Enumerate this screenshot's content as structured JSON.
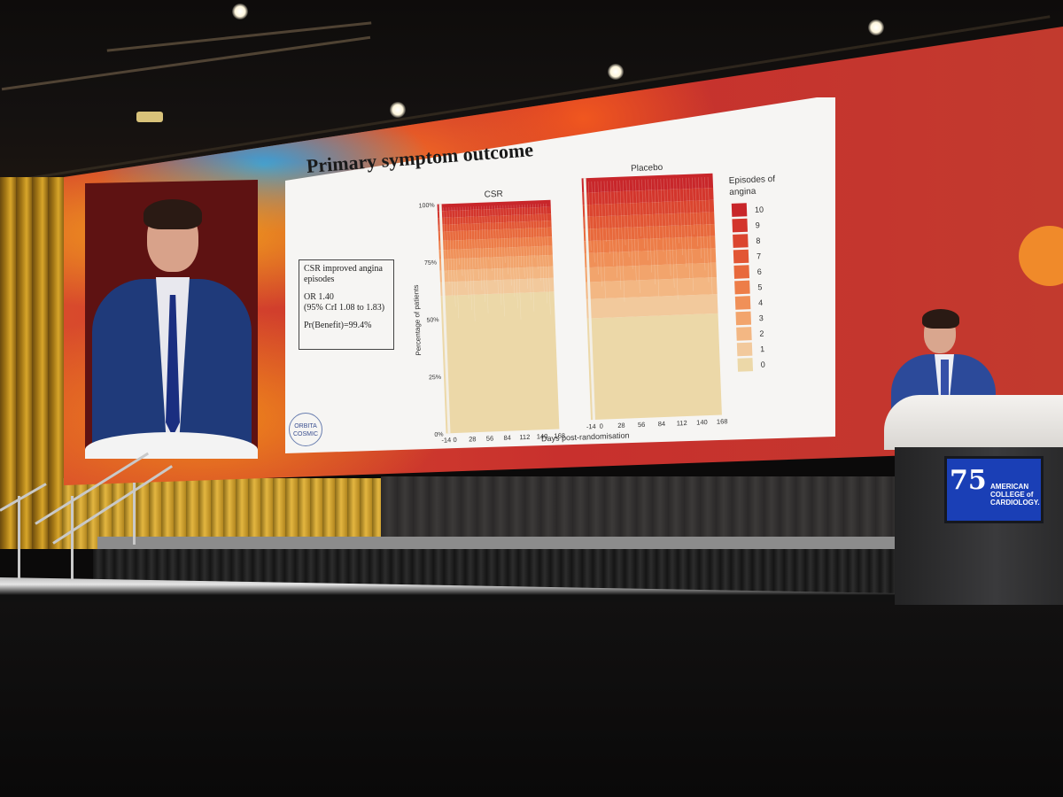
{
  "slide": {
    "title": "Primary symptom outcome",
    "box_line1": "CSR improved angina episodes",
    "box_line2": "OR 1.40",
    "box_line3": "(95% CrI 1.08 to 1.83)",
    "box_line4": "Pr(Benefit)=99.4%",
    "logo_line1": "ORBITA",
    "logo_line2": "COSMIC"
  },
  "podium": {
    "logo_number": "75",
    "logo_line1": "AMERICAN",
    "logo_line2": "COLLEGE of",
    "logo_line3": "CARDIOLOGY."
  },
  "chart_data": {
    "type": "area",
    "panels": [
      "CSR",
      "Placebo"
    ],
    "x": [
      -14,
      0,
      28,
      56,
      84,
      112,
      140,
      168
    ],
    "xtick_labels": [
      "-14",
      "0",
      "28",
      "56",
      "84",
      "112",
      "140",
      "168"
    ],
    "ytick_labels": [
      "0%",
      "25%",
      "50%",
      "75%",
      "100%"
    ],
    "xlabel": "Days post-randomisation",
    "ylabel": "Percentage of patients",
    "legend_title_line1": "Episodes of",
    "legend_title_line2": "angina",
    "legend_labels": [
      "10",
      "9",
      "8",
      "7",
      "6",
      "5",
      "4",
      "3",
      "2",
      "1",
      "0"
    ],
    "legend_colors": [
      "#c8262a",
      "#d3352c",
      "#db452f",
      "#e25634",
      "#e8693c",
      "#ed7d48",
      "#f09058",
      "#f2a46c",
      "#f3b783",
      "#f2c99c",
      "#ecd8a8"
    ],
    "ylim": [
      0,
      100
    ],
    "series_share_csr": [
      0.6,
      0.06,
      0.05,
      0.05,
      0.04,
      0.04,
      0.04,
      0.03,
      0.03,
      0.03,
      0.03
    ],
    "series_share_placebo": [
      0.42,
      0.08,
      0.07,
      0.06,
      0.06,
      0.05,
      0.05,
      0.05,
      0.05,
      0.05,
      0.06
    ]
  }
}
